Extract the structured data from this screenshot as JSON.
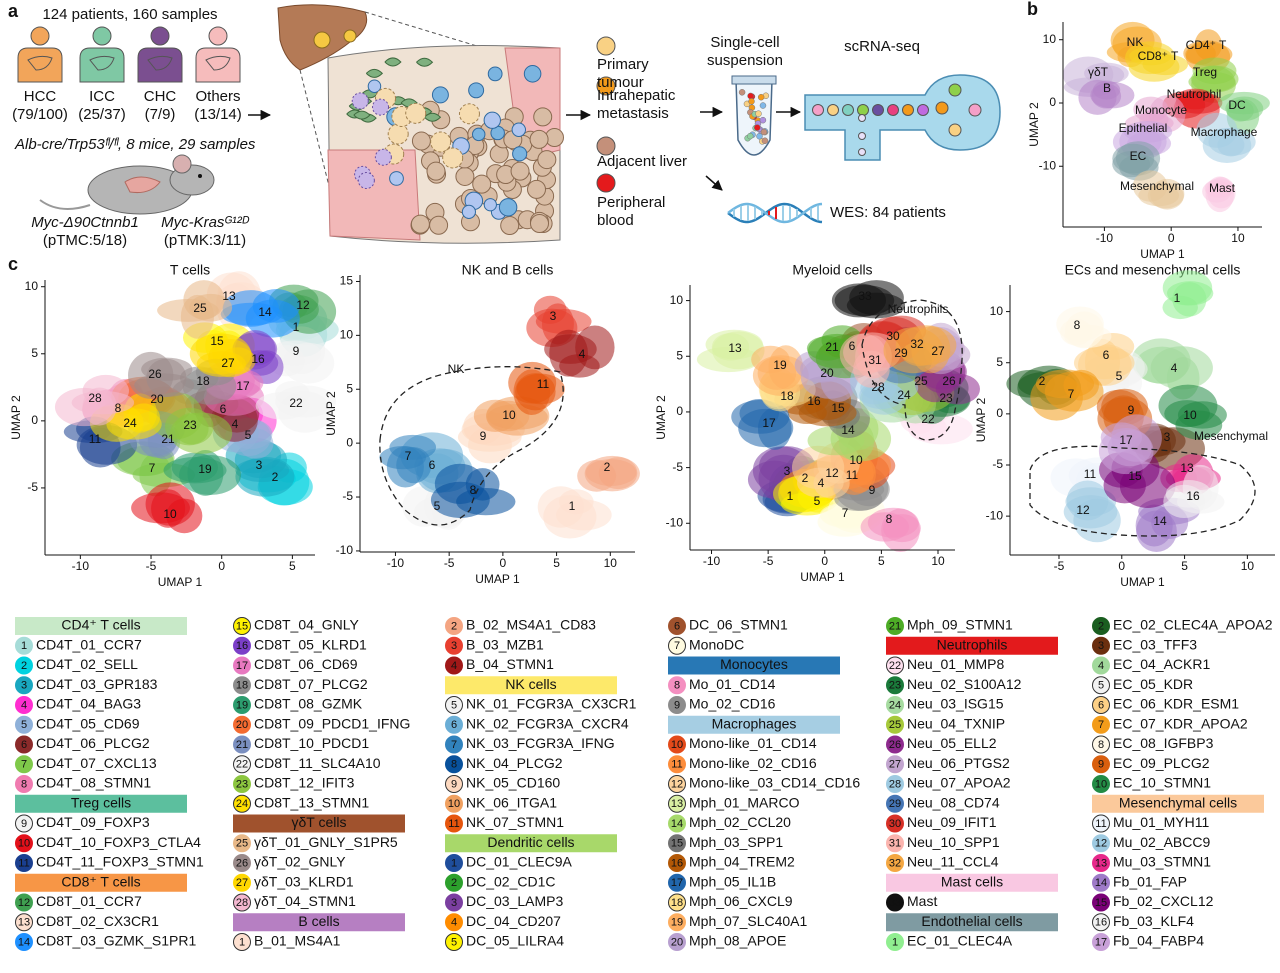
{
  "panel_a": {
    "label": "a",
    "cohort": "124 patients, 160 samples",
    "groups": [
      {
        "name": "HCC",
        "count": "(79/100)",
        "color": "#f2a55a"
      },
      {
        "name": "ICC",
        "count": "(25/37)",
        "color": "#7fc8a4"
      },
      {
        "name": "CHC",
        "count": "(7/9)",
        "color": "#7b4f90"
      },
      {
        "name": "Others",
        "count": "(13/14)",
        "color": "#f6bcbc"
      }
    ],
    "mouse_cohort": "Alb-cre/Trp53ᶠˡ/ᶠˡ, 8 mice, 29 samples",
    "mouse_models": [
      {
        "name": "Myc-Δ90Ctnnb1",
        "count": "(pTMC:5/18)"
      },
      {
        "name": "Myc-Krasᴳ¹²ᴰ",
        "count": "(pTMK:3/11)"
      }
    ],
    "sample_types": [
      {
        "name": "Primary tumour",
        "color": "#f9d184"
      },
      {
        "name": "Intrahepatic metastasis",
        "color": "#f39a1b"
      },
      {
        "name": "Adjacent liver",
        "color": "#c4907a"
      },
      {
        "name": "Peripheral blood",
        "color": "#e41a1c"
      }
    ],
    "steps": [
      "Single-cell suspension",
      "scRNA-seq"
    ],
    "wes": "WES: 84 patients"
  },
  "panel_b": {
    "label": "b",
    "xlabel": "UMAP 1",
    "ylabel": "UMAP 2",
    "xlim": [
      -16.2,
      13.6
    ],
    "ylim": [
      -19.6,
      12.8
    ],
    "xticks": [
      -10,
      0,
      10
    ],
    "yticks": [
      -10,
      0,
      10
    ],
    "clusters": [
      "NK",
      "CD8⁺ T",
      "CD4⁺ T",
      "Treg",
      "γδT",
      "B",
      "Neutrophil",
      "Monocyte",
      "DC",
      "Epithelial",
      "Macrophage",
      "EC",
      "Mesenchymal",
      "Mast"
    ]
  },
  "panel_c": {
    "label": "c",
    "plots": [
      {
        "title": "T cells",
        "xlabel": "UMAP 1",
        "ylabel": "UMAP 2",
        "xlim": [
          -12.5,
          6.6
        ],
        "ylim": [
          -10,
          10.5
        ],
        "xticks": [
          -10,
          -5,
          0,
          5
        ],
        "yticks": [
          -5,
          0,
          5,
          10
        ],
        "annotations": []
      },
      {
        "title": "NK and B cells",
        "xlabel": "UMAP 1",
        "ylabel": "UMAP 2",
        "xlim": [
          -13.3,
          12.3
        ],
        "ylim": [
          -10.1,
          15.6
        ],
        "xticks": [
          -10,
          -5,
          0,
          5,
          10
        ],
        "yticks": [
          -10,
          -5,
          0,
          5,
          10,
          15
        ],
        "annotations": [
          "NK"
        ]
      },
      {
        "title": "Myeloid cells",
        "xlabel": "UMAP 1",
        "ylabel": "UMAP 2",
        "xlim": [
          -11.9,
          11.5
        ],
        "ylim": [
          -12.4,
          11.4
        ],
        "xticks": [
          -10,
          -5,
          0,
          5,
          10
        ],
        "yticks": [
          -10,
          -5,
          0,
          5,
          10
        ],
        "annotations": [
          "Neutrophils"
        ]
      },
      {
        "title": "ECs and mesenchymal cells",
        "xlabel": "UMAP 1",
        "ylabel": "UMAP 2",
        "xlim": [
          -8.9,
          12.2
        ],
        "ylim": [
          -13.8,
          12.6
        ],
        "xticks": [
          -5,
          0,
          5,
          10
        ],
        "yticks": [
          -10,
          -5,
          0,
          5,
          10
        ],
        "annotations": [
          "Mesenchymal"
        ]
      }
    ],
    "legend": [
      {
        "title": "CD4⁺ T cells",
        "color": "#c8e9c8",
        "items": [
          {
            "num": 1,
            "label": "CD4T_01_CCR7",
            "color": "#a6dcd8"
          },
          {
            "num": 2,
            "label": "CD4T_02_SELL",
            "color": "#00d2e0"
          },
          {
            "num": 3,
            "label": "CD4T_03_GPR183",
            "color": "#19a7c0"
          },
          {
            "num": 4,
            "label": "CD4T_04_BAG3",
            "color": "#ff2ed0"
          },
          {
            "num": 5,
            "label": "CD4T_05_CD69",
            "color": "#8fb1d9"
          },
          {
            "num": 6,
            "label": "CD4T_06_PLCG2",
            "color": "#8b2a2a"
          },
          {
            "num": 7,
            "label": "CD4T_07_CXCL13",
            "color": "#7fc94a"
          },
          {
            "num": 8,
            "label": "CD4T_08_STMN1",
            "color": "#f07bb0"
          }
        ]
      },
      {
        "title": "Treg cells",
        "color": "#5cbf9e",
        "items": [
          {
            "num": 9,
            "label": "CD4T_09_FOXP3",
            "color": "#f2f2f2"
          },
          {
            "num": 10,
            "label": "CD4T_10_FOXP3_CTLA4",
            "color": "#e3101a"
          },
          {
            "num": 11,
            "label": "CD4T_11_FOXP3_STMN1",
            "color": "#1a3f8f"
          }
        ]
      },
      {
        "title": "CD8⁺ T cells",
        "color": "#f79646",
        "items": [
          {
            "num": 12,
            "label": "CD8T_01_CCR7",
            "color": "#3fa050"
          },
          {
            "num": 13,
            "label": "CD8T_02_CX3CR1",
            "color": "#fde0d0"
          },
          {
            "num": 14,
            "label": "CD8T_03_GZMK_S1PR1",
            "color": "#1e90ff"
          },
          {
            "num": 15,
            "label": "CD8T_04_GNLY",
            "color": "#fff200"
          },
          {
            "num": 16,
            "label": "CD8T_05_KLRD1",
            "color": "#7b3fc8"
          },
          {
            "num": 17,
            "label": "CD8T_06_CD69",
            "color": "#e879c0"
          },
          {
            "num": 18,
            "label": "CD8T_07_PLCG2",
            "color": "#8c8c8c"
          },
          {
            "num": 19,
            "label": "CD8T_08_GZMK",
            "color": "#2c9c6e"
          },
          {
            "num": 20,
            "label": "CD8T_09_PDCD1_IFNG",
            "color": "#f46b30"
          },
          {
            "num": 21,
            "label": "CD8T_10_PDCD1",
            "color": "#7a8fc0"
          },
          {
            "num": 22,
            "label": "CD8T_11_SLC4A10",
            "color": "#f2f2f2"
          },
          {
            "num": 23,
            "label": "CD8T_12_IFIT3",
            "color": "#8cc63f"
          },
          {
            "num": 24,
            "label": "CD8T_13_STMN1",
            "color": "#ffe000"
          }
        ]
      },
      {
        "title": "γδT cells",
        "color": "#a0522d",
        "items": [
          {
            "num": 25,
            "label": "γδT_01_GNLY_S1PR5",
            "color": "#e8b888"
          },
          {
            "num": 26,
            "label": "γδT_02_GNLY",
            "color": "#9a8a8a"
          },
          {
            "num": 27,
            "label": "γδT_03_KLRD1",
            "color": "#ffd700"
          },
          {
            "num": 28,
            "label": "γδT_04_STMN1",
            "color": "#f4b8d0"
          }
        ]
      },
      {
        "title": "B cells",
        "color": "#b67fc2",
        "items": [
          {
            "num": 1,
            "label": "B_01_MS4A1",
            "color": "#fde0d0"
          },
          {
            "num": 2,
            "label": "B_02_MS4A1_CD83",
            "color": "#f4a582"
          },
          {
            "num": 3,
            "label": "B_03_MZB1",
            "color": "#e84030"
          },
          {
            "num": 4,
            "label": "B_04_STMN1",
            "color": "#a01818"
          }
        ]
      },
      {
        "title": "NK cells",
        "color": "#fde96a",
        "items": [
          {
            "num": 5,
            "label": "NK_01_FCGR3A_CX3CR1",
            "color": "#f2f2f2"
          },
          {
            "num": 6,
            "label": "NK_02_FCGR3A_CXCR4",
            "color": "#6baed6"
          },
          {
            "num": 7,
            "label": "NK_03_FCGR3A_IFNG",
            "color": "#3182bd"
          },
          {
            "num": 8,
            "label": "NK_04_PLCG2",
            "color": "#08519c"
          },
          {
            "num": 9,
            "label": "NK_05_CD160",
            "color": "#fdd9c0"
          },
          {
            "num": 10,
            "label": "NK_06_ITGA1",
            "color": "#f0a060"
          },
          {
            "num": 11,
            "label": "NK_07_STMN1",
            "color": "#e6550d"
          }
        ]
      },
      {
        "title": "Dendritic cells",
        "color": "#a8d86a",
        "items": [
          {
            "num": 1,
            "label": "DC_01_CLEC9A",
            "color": "#1f4e9c"
          },
          {
            "num": 2,
            "label": "DC_02_CD1C",
            "color": "#2ca02c"
          },
          {
            "num": 3,
            "label": "DC_03_LAMP3",
            "color": "#7b3fa0"
          },
          {
            "num": 4,
            "label": "DC_04_CD207",
            "color": "#ff8c00"
          },
          {
            "num": 5,
            "label": "DC_05_LILRA4",
            "color": "#fff200"
          },
          {
            "num": 6,
            "label": "DC_06_STMN1",
            "color": "#a0522d"
          },
          {
            "num": 7,
            "label": "MonoDC",
            "color": "#fffbe0"
          }
        ]
      },
      {
        "title": "Monocytes",
        "color": "#2878b5",
        "items": [
          {
            "num": 8,
            "label": "Mo_01_CD14",
            "color": "#f48fc0"
          },
          {
            "num": 9,
            "label": "Mo_02_CD16",
            "color": "#8c8c8c"
          }
        ]
      },
      {
        "title": "Macrophages",
        "color": "#a6cee3",
        "items": [
          {
            "num": 10,
            "label": "Mono-like_01_CD14",
            "color": "#e34a1a"
          },
          {
            "num": 11,
            "label": "Mono-like_02_CD16",
            "color": "#fd8d3c"
          },
          {
            "num": 12,
            "label": "Mono-like_03_CD14_CD16",
            "color": "#fdd49e"
          },
          {
            "num": 13,
            "label": "Mph_01_MARCO",
            "color": "#d9f0a3"
          },
          {
            "num": 14,
            "label": "Mph_02_CCL20",
            "color": "#a6d96a"
          },
          {
            "num": 15,
            "label": "Mph_03_SPP1",
            "color": "#737373"
          },
          {
            "num": 16,
            "label": "Mph_04_TREM2",
            "color": "#b35806"
          },
          {
            "num": 17,
            "label": "Mph_05_IL1B",
            "color": "#2166ac"
          },
          {
            "num": 18,
            "label": "Mph_06_CXCL9",
            "color": "#fee08b"
          },
          {
            "num": 19,
            "label": "Mph_07_SLC40A1",
            "color": "#fdae61"
          },
          {
            "num": 20,
            "label": "Mph_08_APOE",
            "color": "#b8a0d0"
          },
          {
            "num": 21,
            "label": "Mph_09_STMN1",
            "color": "#4dac26"
          }
        ]
      },
      {
        "title": "Neutrophils",
        "color": "#e31a1c",
        "items": [
          {
            "num": 22,
            "label": "Neu_01_MMP8",
            "color": "#fde0ef"
          },
          {
            "num": 23,
            "label": "Neu_02_S100A12",
            "color": "#1a7a3a"
          },
          {
            "num": 24,
            "label": "Neu_03_ISG15",
            "color": "#a6dba0"
          },
          {
            "num": 25,
            "label": "Neu_04_TXNIP",
            "color": "#a6c93a"
          },
          {
            "num": 26,
            "label": "Neu_05_ELL2",
            "color": "#8e2a8e"
          },
          {
            "num": 27,
            "label": "Neu_06_PTGS2",
            "color": "#c2a5cf"
          },
          {
            "num": 28,
            "label": "Neu_07_APOA2",
            "color": "#9ecae1"
          },
          {
            "num": 29,
            "label": "Neu_08_CD74",
            "color": "#4575b4"
          },
          {
            "num": 30,
            "label": "Neu_09_IFIT1",
            "color": "#d73027"
          },
          {
            "num": 31,
            "label": "Neu_10_SPP1",
            "color": "#fbb4ae"
          },
          {
            "num": 32,
            "label": "Neu_11_CCL4",
            "color": "#f4a742"
          }
        ]
      },
      {
        "title": "Mast cells",
        "color": "#f9c8e2",
        "items": [
          {
            "num": 33,
            "label": "Mast",
            "color": "#111111"
          }
        ]
      },
      {
        "title": "Endothelial cells",
        "color": "#7f9ba2",
        "items": [
          {
            "num": 1,
            "label": "EC_01_CLEC4A",
            "color": "#90ee90"
          },
          {
            "num": 2,
            "label": "EC_02_CLEC4A_APOA2",
            "color": "#1b5e20"
          },
          {
            "num": 3,
            "label": "EC_03_TFF3",
            "color": "#6b2f0f"
          },
          {
            "num": 4,
            "label": "EC_04_ACKR1",
            "color": "#a1d99b"
          },
          {
            "num": 5,
            "label": "EC_05_KDR",
            "color": "#f2f2f2"
          },
          {
            "num": 6,
            "label": "EC_06_KDR_ESM1",
            "color": "#fdd086"
          },
          {
            "num": 7,
            "label": "EC_07_KDR_APOA2",
            "color": "#f39c1a"
          },
          {
            "num": 8,
            "label": "EC_08_IGFBP3",
            "color": "#fff8e8"
          },
          {
            "num": 9,
            "label": "EC_09_PLCG2",
            "color": "#d95f0e"
          },
          {
            "num": 10,
            "label": "EC_10_STMN1",
            "color": "#238b45"
          }
        ]
      },
      {
        "title": "Mesenchymal cells",
        "color": "#fbc99b",
        "items": [
          {
            "num": 11,
            "label": "Mu_01_MYH11",
            "color": "#eef4fb"
          },
          {
            "num": 12,
            "label": "Mu_02_ABCC9",
            "color": "#9ecae1"
          },
          {
            "num": 13,
            "label": "Mu_03_STMN1",
            "color": "#e7298a"
          },
          {
            "num": 14,
            "label": "Fb_01_FAP",
            "color": "#9e7ac8"
          },
          {
            "num": 15,
            "label": "Fb_02_CXCL12",
            "color": "#7a0177"
          },
          {
            "num": 16,
            "label": "Fb_03_KLF4",
            "color": "#f2f2f2"
          },
          {
            "num": 17,
            "label": "Fb_04_FABP4",
            "color": "#c8a0d8"
          }
        ]
      }
    ]
  }
}
